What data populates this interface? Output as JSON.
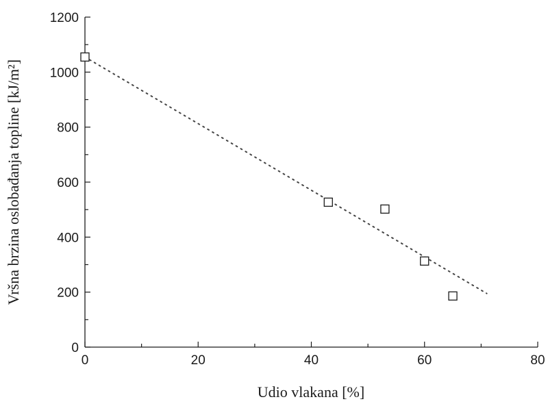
{
  "chart_data": {
    "type": "scatter",
    "title": "",
    "xlabel": "Udio vlakana [%]",
    "ylabel": "Vršna brzina oslobađanja topline [kJ/m²]",
    "xlim": [
      0,
      80
    ],
    "ylim": [
      0,
      1200
    ],
    "xticks": [
      0,
      20,
      40,
      60,
      80
    ],
    "yticks": [
      0,
      200,
      400,
      600,
      800,
      1000,
      1200
    ],
    "series": [
      {
        "marker": "open-square",
        "points": [
          {
            "x": 0,
            "y": 1055
          },
          {
            "x": 43,
            "y": 527
          },
          {
            "x": 53,
            "y": 502
          },
          {
            "x": 60,
            "y": 313
          },
          {
            "x": 65,
            "y": 186
          }
        ]
      }
    ],
    "trendline": {
      "style": "dotted",
      "x": [
        0,
        71
      ],
      "y": [
        1055,
        195
      ]
    },
    "grid": false,
    "legend": "none"
  }
}
